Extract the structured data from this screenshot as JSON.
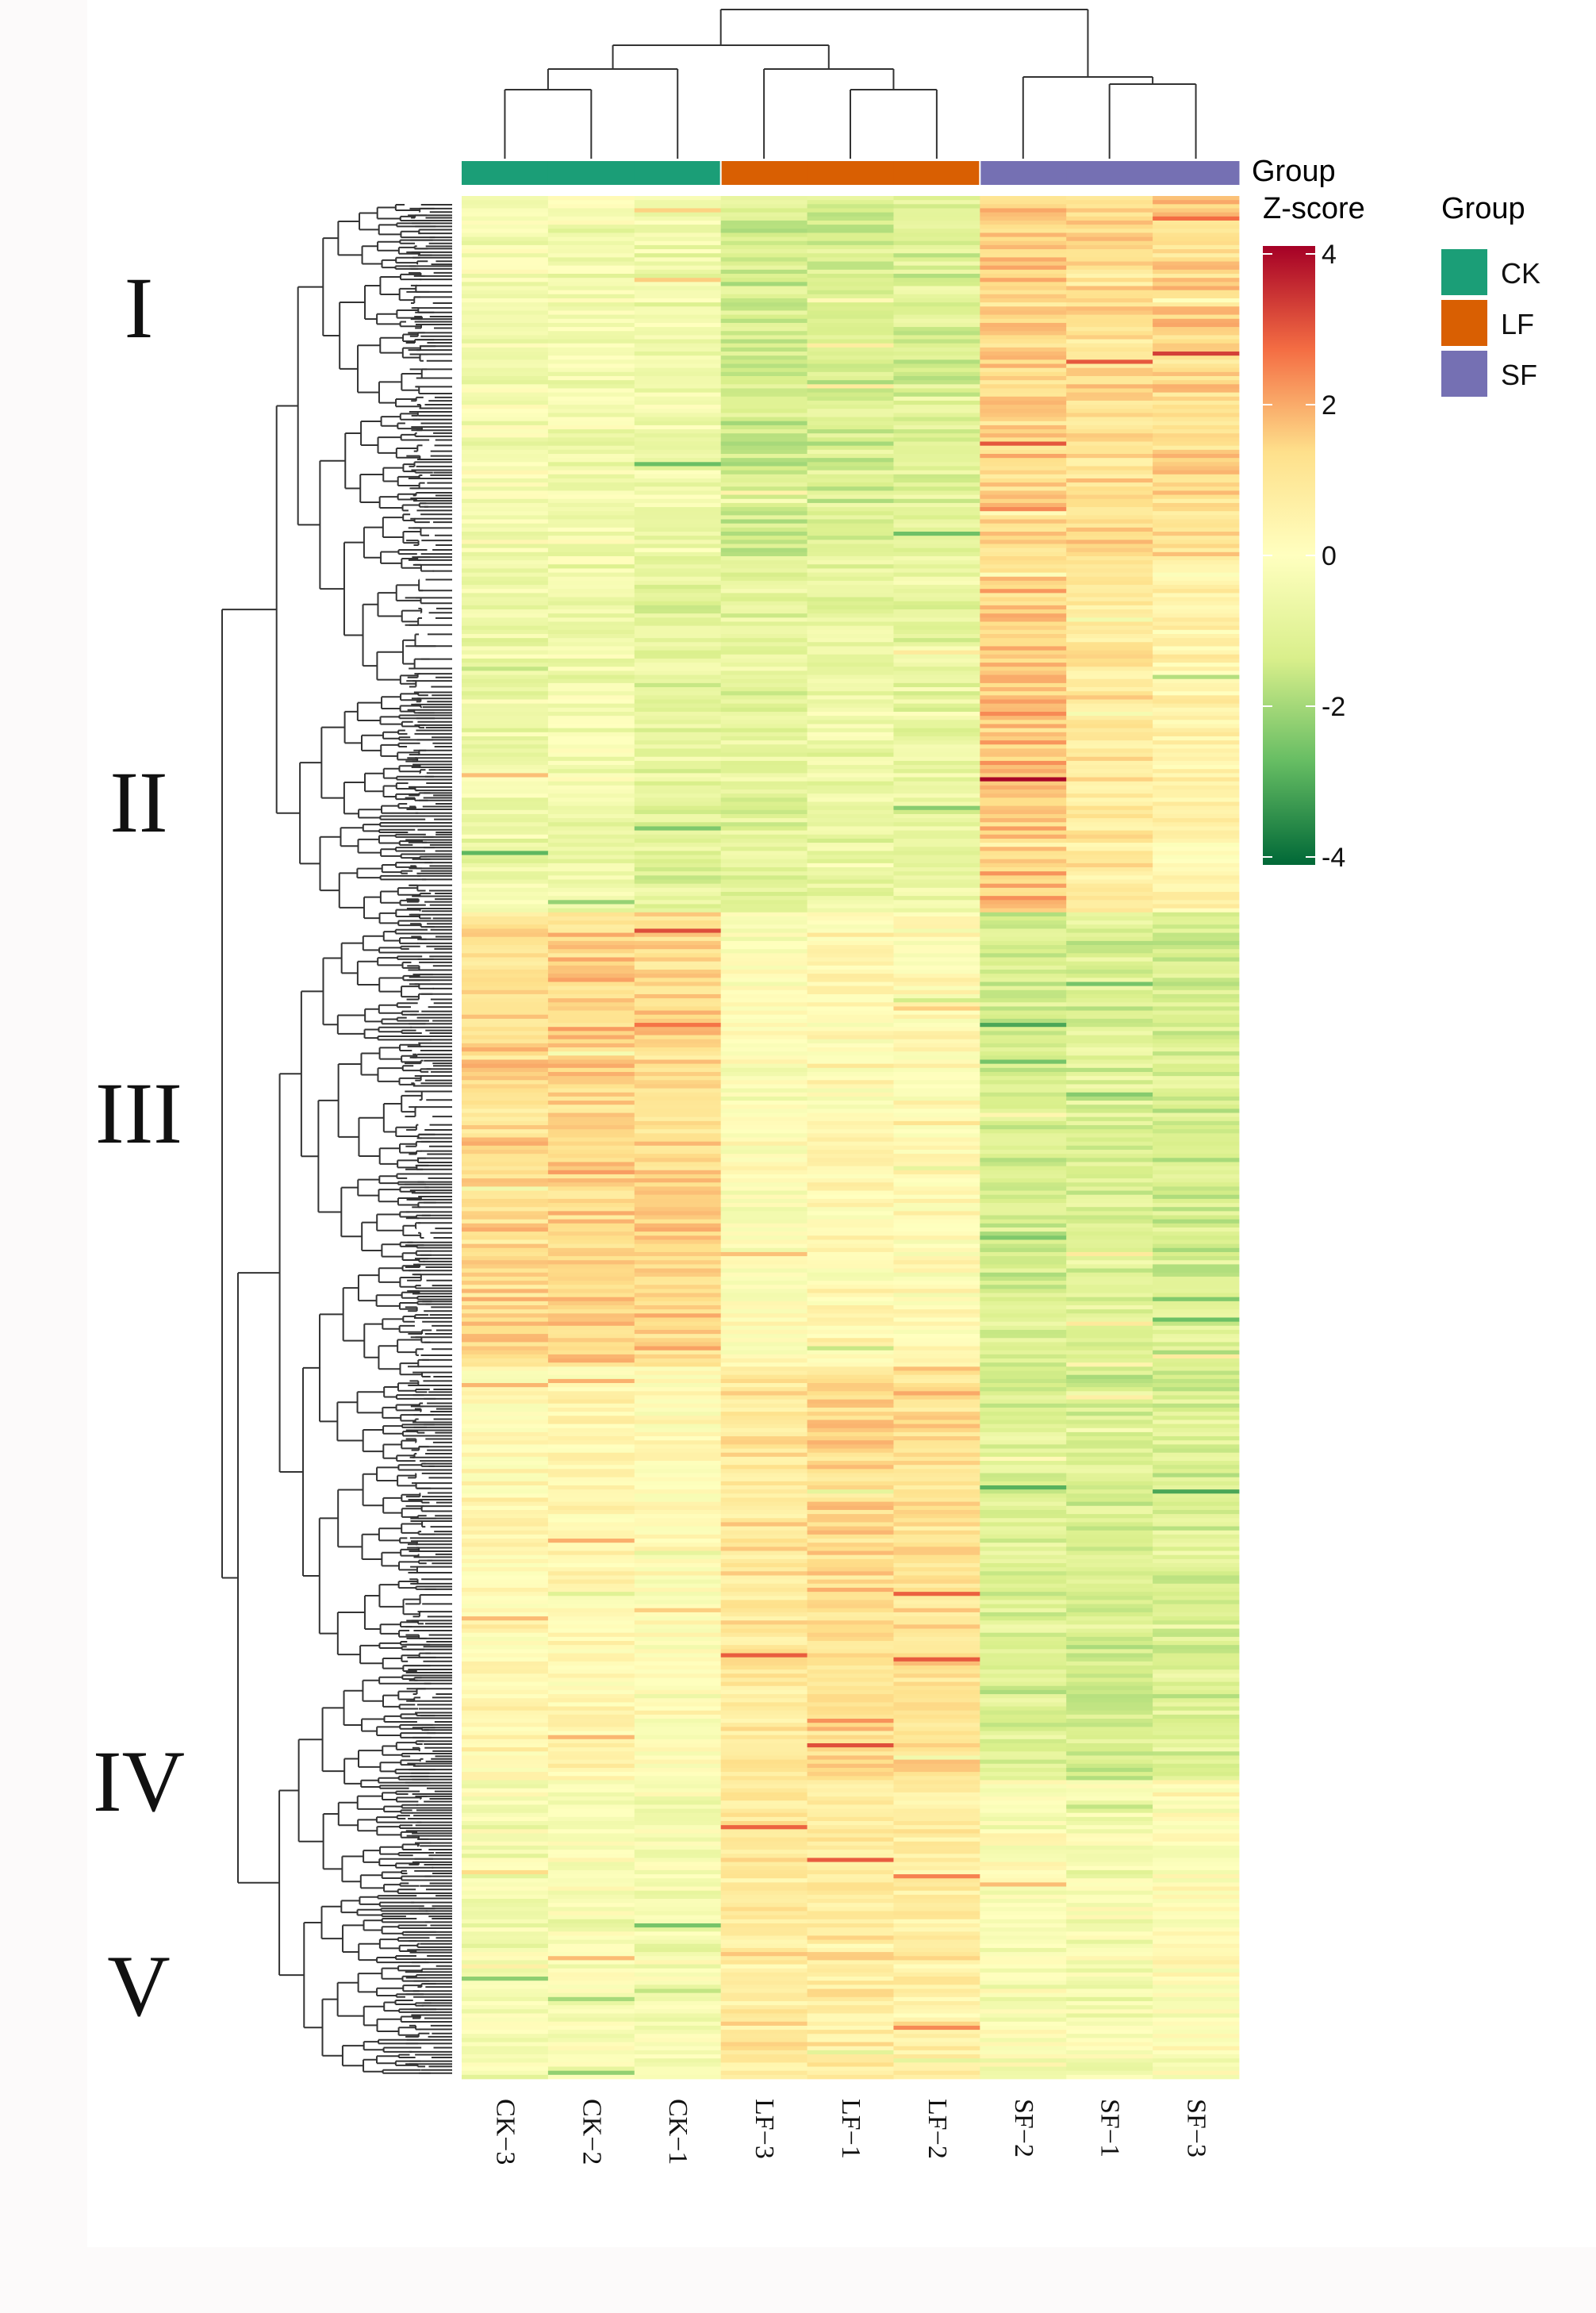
{
  "chart_data": {
    "type": "heatmap",
    "title": "",
    "samples": [
      "CK−3",
      "CK−2",
      "CK−1",
      "LF−3",
      "LF−1",
      "LF−2",
      "SF−2",
      "SF−1",
      "SF−3"
    ],
    "sample_groups": [
      "CK",
      "CK",
      "CK",
      "LF",
      "LF",
      "LF",
      "SF",
      "SF",
      "SF"
    ],
    "group_annotation_label": "Group",
    "legend": {
      "title": "Group",
      "entries": [
        {
          "label": "CK",
          "color": "#1b9e77"
        },
        {
          "label": "LF",
          "color": "#d95f02"
        },
        {
          "label": "SF",
          "color": "#7570b3"
        }
      ]
    },
    "colorbar": {
      "title": "Z-score",
      "range": [
        -4,
        4
      ],
      "ticks": [
        "4",
        "2",
        "0",
        "-2",
        "-4"
      ],
      "colors": [
        "#a50026",
        "#f46d43",
        "#fee08b",
        "#ffffbf",
        "#d9ef8b",
        "#66bd63",
        "#006837"
      ]
    },
    "row_clusters": [
      {
        "label": "I",
        "rows": [
          0,
          0.19
        ],
        "profile": [
          -0.3,
          -0.4,
          -0.5,
          -1.3,
          -1.2,
          -1.1,
          1.4,
          1.2,
          1.3
        ]
      },
      {
        "label": "II",
        "rows": [
          0.19,
          0.38
        ],
        "profile": [
          -0.6,
          -0.5,
          -0.9,
          -0.9,
          -0.7,
          -0.8,
          1.6,
          0.9,
          0.5
        ]
      },
      {
        "label": "III",
        "rows": [
          0.38,
          0.62
        ],
        "profile": [
          1.3,
          1.4,
          1.3,
          0.0,
          0.3,
          0.2,
          -1.2,
          -1.1,
          -1.3
        ]
      },
      {
        "label": "IV",
        "rows": [
          0.62,
          0.84
        ],
        "profile": [
          0.3,
          0.4,
          0.1,
          1.0,
          1.3,
          1.2,
          -1.1,
          -1.2,
          -1.1
        ]
      },
      {
        "label": "V",
        "rows": [
          0.84,
          1.0
        ],
        "profile": [
          -0.3,
          -0.2,
          -0.3,
          0.9,
          0.8,
          0.7,
          -0.1,
          -0.3,
          0.1
        ]
      }
    ]
  }
}
